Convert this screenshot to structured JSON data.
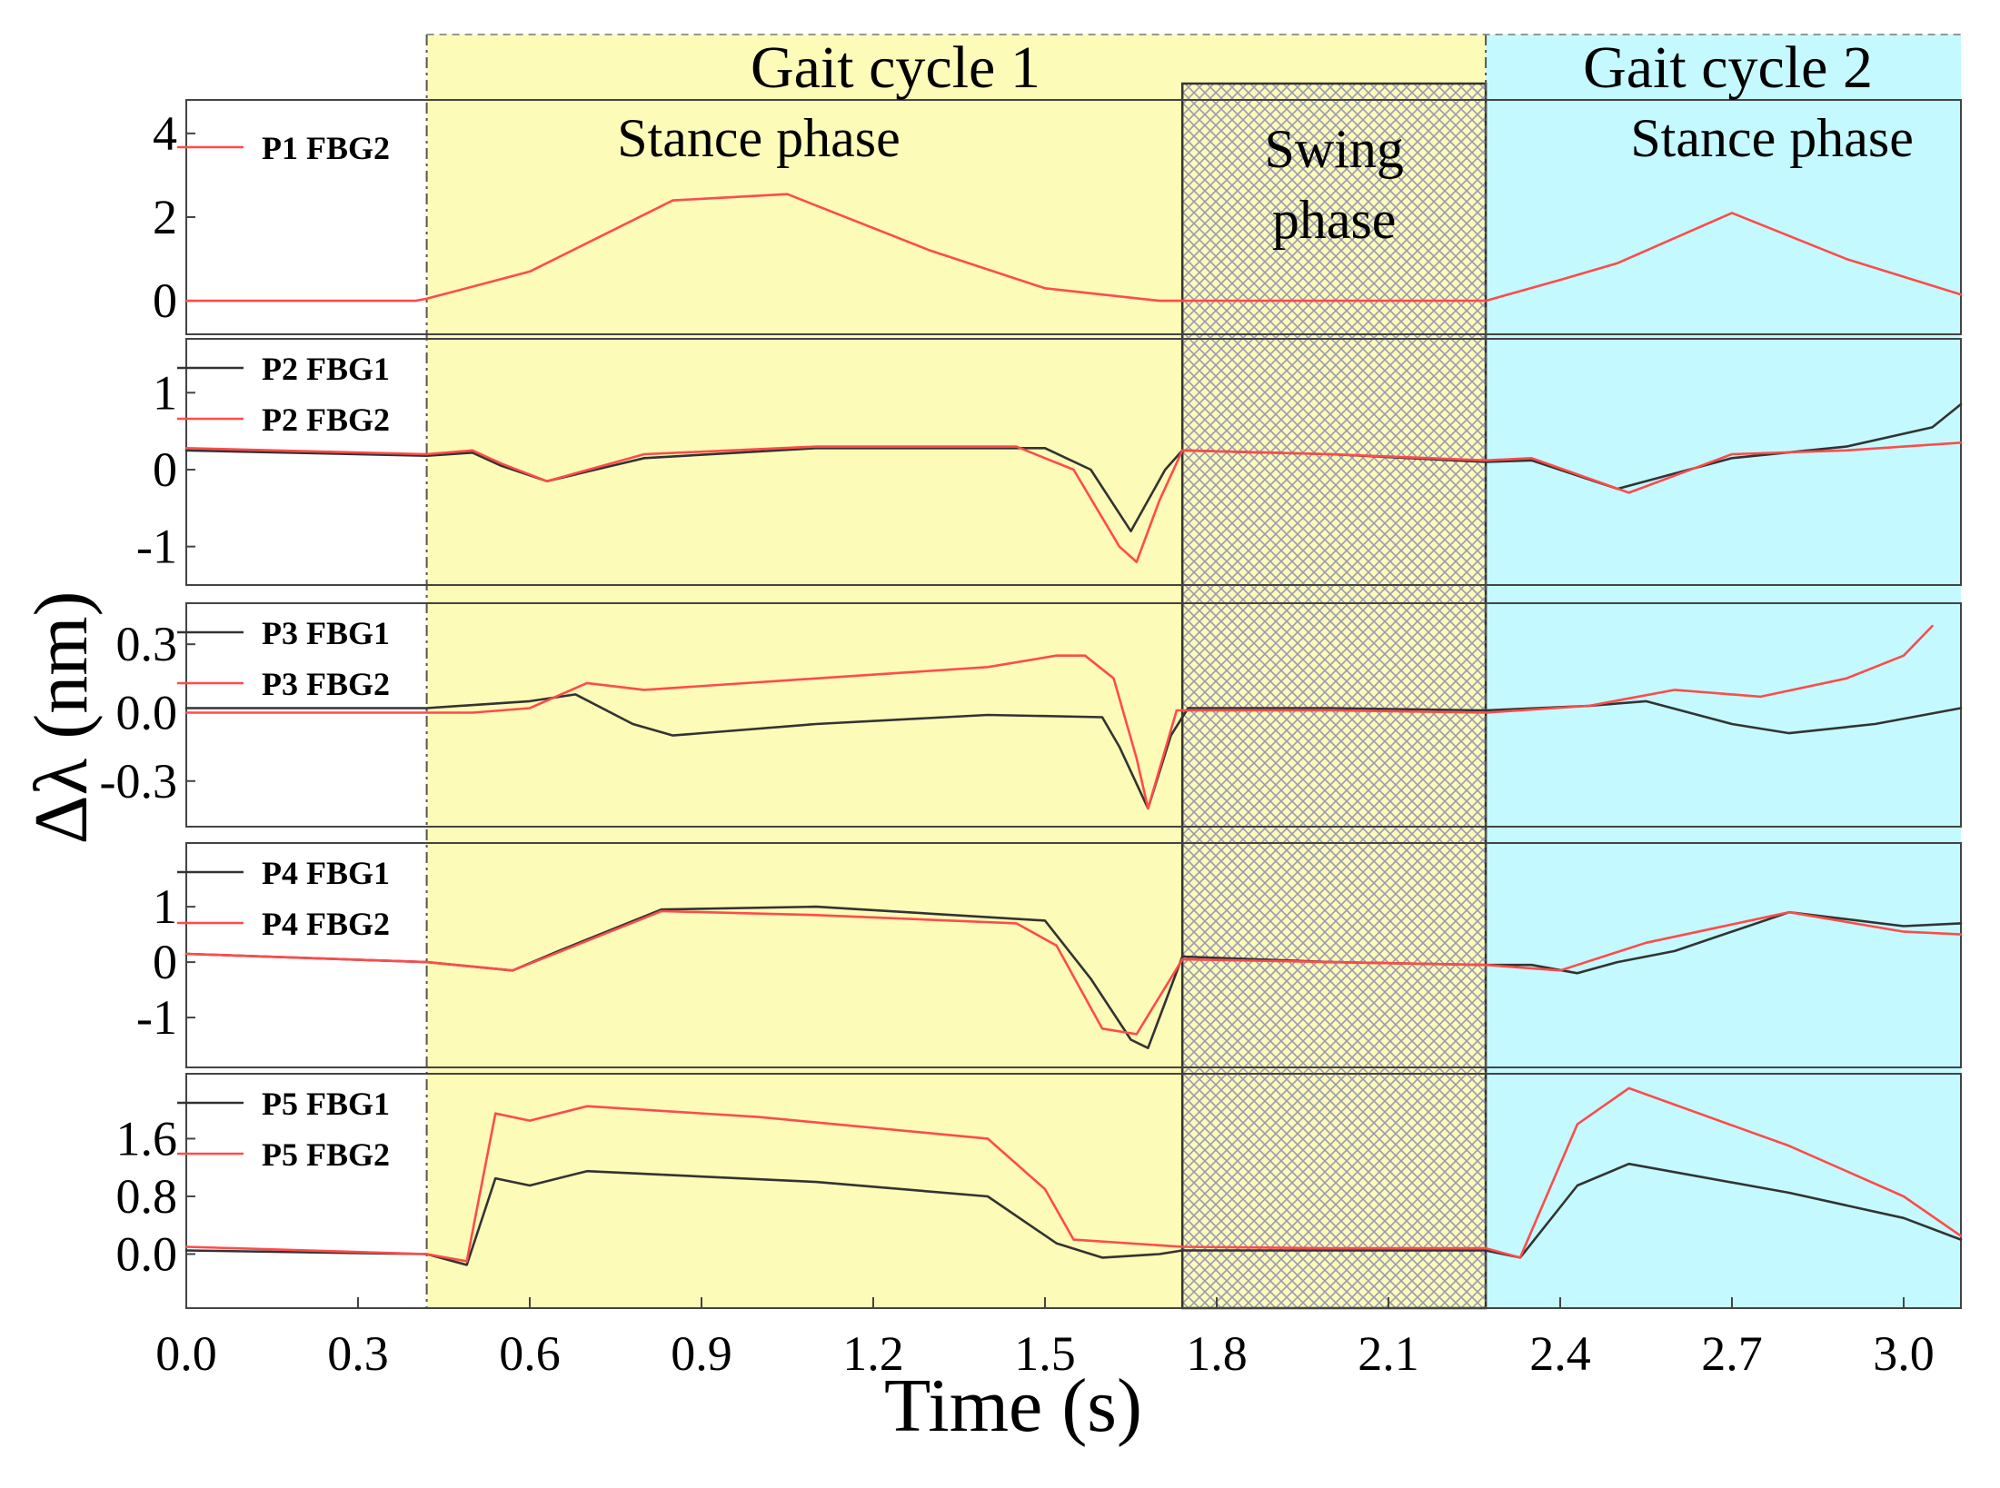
{
  "chart_data": {
    "type": "line",
    "xlabel": "Time (s)",
    "ylabel": "Δλ (nm)",
    "xlim": [
      0,
      3.1
    ],
    "xticks": [
      "0.0",
      "0.3",
      "0.6",
      "0.9",
      "1.2",
      "1.5",
      "1.8",
      "2.1",
      "2.4",
      "2.7",
      "3.0"
    ],
    "xtick_values": [
      0.0,
      0.3,
      0.6,
      0.9,
      1.2,
      1.5,
      1.8,
      2.1,
      2.4,
      2.7,
      3.0
    ],
    "regions": [
      {
        "name": "gait-cycle-1",
        "label": "Gait cycle 1",
        "x0": 0.42,
        "x1": 2.27,
        "color": "#fdfbb8"
      },
      {
        "name": "gait-cycle-2",
        "label": "Gait cycle 2",
        "x0": 2.27,
        "x1": 3.1,
        "color": "#c4faff"
      }
    ],
    "phases": [
      {
        "name": "stance-phase-1",
        "label": "Stance phase",
        "x_center": 1.0
      },
      {
        "name": "swing-phase",
        "label_line1": "Swing",
        "label_line2": "phase",
        "x0": 1.74,
        "x1": 2.27
      },
      {
        "name": "stance-phase-2",
        "label": "Stance phase",
        "x_center": 2.77
      }
    ],
    "panels": [
      {
        "id": "p1",
        "ylim": [
          -0.8,
          4.8
        ],
        "yticks": [
          "4",
          "2",
          "0"
        ],
        "ytick_values": [
          4,
          2,
          0
        ],
        "series": [
          {
            "name": "P1 FBG2",
            "color": "#ff4b4b",
            "x": [
              0.0,
              0.4,
              0.42,
              0.6,
              0.85,
              1.05,
              1.3,
              1.5,
              1.7,
              2.0,
              2.27,
              2.4,
              2.5,
              2.7,
              2.9,
              3.1
            ],
            "y": [
              0.0,
              0.0,
              0.05,
              0.7,
              2.4,
              2.55,
              1.2,
              0.3,
              0.0,
              0.0,
              0.0,
              0.5,
              0.9,
              2.1,
              1.0,
              0.15
            ]
          }
        ]
      },
      {
        "id": "p2",
        "ylim": [
          -1.5,
          1.7
        ],
        "yticks": [
          "1",
          "0",
          "-1"
        ],
        "ytick_values": [
          1,
          0,
          -1
        ],
        "series": [
          {
            "name": "P2 FBG1",
            "color": "#333333",
            "x": [
              0.0,
              0.42,
              0.5,
              0.55,
              0.63,
              0.8,
              1.1,
              1.5,
              1.58,
              1.65,
              1.71,
              1.74,
              2.0,
              2.27,
              2.35,
              2.5,
              2.7,
              2.9,
              3.05,
              3.1
            ],
            "y": [
              0.25,
              0.18,
              0.22,
              0.05,
              -0.15,
              0.15,
              0.28,
              0.28,
              0.0,
              -0.8,
              0.0,
              0.25,
              0.2,
              0.1,
              0.12,
              -0.25,
              0.15,
              0.3,
              0.55,
              0.85
            ]
          },
          {
            "name": "P2 FBG2",
            "color": "#ff4b4b",
            "x": [
              0.0,
              0.42,
              0.5,
              0.55,
              0.63,
              0.8,
              1.1,
              1.45,
              1.55,
              1.63,
              1.66,
              1.7,
              1.74,
              2.0,
              2.27,
              2.35,
              2.52,
              2.7,
              2.9,
              3.1
            ],
            "y": [
              0.28,
              0.2,
              0.25,
              0.08,
              -0.15,
              0.2,
              0.3,
              0.3,
              0.0,
              -1.0,
              -1.2,
              -0.4,
              0.25,
              0.2,
              0.12,
              0.15,
              -0.3,
              0.2,
              0.25,
              0.35
            ]
          }
        ]
      },
      {
        "id": "p3",
        "ylim": [
          -0.5,
          0.48
        ],
        "yticks": [
          "0.3",
          "0.0",
          "-0.3"
        ],
        "ytick_values": [
          0.3,
          0.0,
          -0.3
        ],
        "series": [
          {
            "name": "P3 FBG1",
            "color": "#333333",
            "x": [
              0.0,
              0.42,
              0.6,
              0.68,
              0.78,
              0.85,
              1.1,
              1.4,
              1.6,
              1.63,
              1.68,
              1.72,
              1.75,
              2.0,
              2.27,
              2.45,
              2.55,
              2.7,
              2.8,
              2.95,
              3.1
            ],
            "y": [
              0.02,
              0.02,
              0.05,
              0.08,
              -0.05,
              -0.1,
              -0.05,
              -0.01,
              -0.02,
              -0.15,
              -0.42,
              -0.1,
              0.02,
              0.02,
              0.01,
              0.03,
              0.05,
              -0.05,
              -0.09,
              -0.05,
              0.02
            ]
          },
          {
            "name": "P3 FBG2",
            "color": "#ff4b4b",
            "x": [
              0.0,
              0.5,
              0.6,
              0.7,
              0.8,
              1.1,
              1.4,
              1.52,
              1.57,
              1.62,
              1.66,
              1.68,
              1.73,
              2.0,
              2.27,
              2.45,
              2.6,
              2.75,
              2.9,
              3.0,
              3.05
            ],
            "y": [
              0.0,
              0.0,
              0.02,
              0.13,
              0.1,
              0.15,
              0.2,
              0.25,
              0.25,
              0.15,
              -0.2,
              -0.42,
              0.01,
              0.01,
              0.0,
              0.03,
              0.1,
              0.07,
              0.15,
              0.25,
              0.38
            ]
          }
        ]
      },
      {
        "id": "p4",
        "ylim": [
          -1.9,
          2.15
        ],
        "yticks": [
          "1",
          "0",
          "-1"
        ],
        "ytick_values": [
          1,
          0,
          -1
        ],
        "series": [
          {
            "name": "P4 FBG1",
            "color": "#333333",
            "x": [
              0.0,
              0.42,
              0.57,
              0.65,
              0.83,
              1.1,
              1.5,
              1.58,
              1.65,
              1.68,
              1.74,
              2.0,
              2.27,
              2.35,
              2.43,
              2.5,
              2.6,
              2.8,
              3.0,
              3.1
            ],
            "y": [
              0.15,
              0.0,
              -0.15,
              0.2,
              0.95,
              1.0,
              0.75,
              -0.3,
              -1.4,
              -1.55,
              0.1,
              0.0,
              -0.05,
              -0.05,
              -0.2,
              0.0,
              0.2,
              0.9,
              0.65,
              0.7
            ]
          },
          {
            "name": "P4 FBG2",
            "color": "#ff4b4b",
            "x": [
              0.0,
              0.42,
              0.57,
              0.68,
              0.83,
              1.1,
              1.45,
              1.52,
              1.6,
              1.66,
              1.74,
              2.0,
              2.27,
              2.4,
              2.55,
              2.8,
              3.0,
              3.1
            ],
            "y": [
              0.15,
              0.0,
              -0.15,
              0.3,
              0.92,
              0.85,
              0.7,
              0.3,
              -1.2,
              -1.3,
              0.05,
              0.0,
              -0.05,
              -0.15,
              0.35,
              0.9,
              0.55,
              0.5
            ]
          }
        ]
      },
      {
        "id": "p5",
        "ylim": [
          -0.75,
          2.5
        ],
        "yticks": [
          "1.6",
          "0.8",
          "0.0"
        ],
        "ytick_values": [
          1.6,
          0.8,
          0.0
        ],
        "series": [
          {
            "name": "P5 FBG1",
            "color": "#333333",
            "x": [
              0.0,
              0.42,
              0.49,
              0.54,
              0.6,
              0.7,
              1.1,
              1.4,
              1.52,
              1.6,
              1.7,
              1.74,
              2.0,
              2.27,
              2.33,
              2.43,
              2.52,
              2.8,
              3.0,
              3.1
            ],
            "y": [
              0.05,
              0.0,
              -0.15,
              1.05,
              0.95,
              1.15,
              1.0,
              0.8,
              0.15,
              -0.05,
              0.0,
              0.05,
              0.05,
              0.05,
              -0.05,
              0.95,
              1.25,
              0.85,
              0.5,
              0.2
            ]
          },
          {
            "name": "P5 FBG2",
            "color": "#ff4b4b",
            "x": [
              0.0,
              0.42,
              0.49,
              0.54,
              0.6,
              0.7,
              1.0,
              1.4,
              1.5,
              1.55,
              1.74,
              2.0,
              2.27,
              2.33,
              2.43,
              2.52,
              2.8,
              3.0,
              3.1
            ],
            "y": [
              0.1,
              0.0,
              -0.1,
              1.95,
              1.85,
              2.05,
              1.9,
              1.6,
              0.9,
              0.2,
              0.1,
              0.08,
              0.08,
              -0.05,
              1.8,
              2.3,
              1.5,
              0.8,
              0.25
            ]
          }
        ]
      }
    ]
  }
}
